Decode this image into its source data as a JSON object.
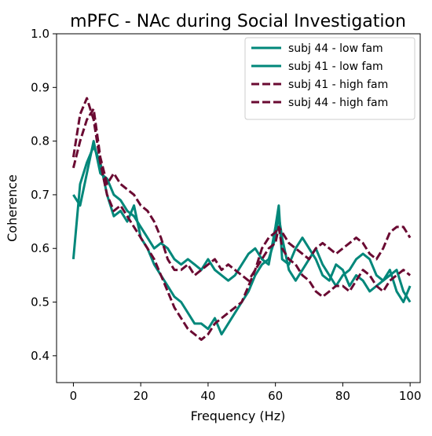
{
  "chart_data": {
    "type": "line",
    "title": "mPFC - NAc during Social Investigation",
    "xlabel": "Frequency (Hz)",
    "ylabel": "Coherence",
    "xlim": [
      -5,
      103
    ],
    "ylim": [
      0.35,
      1.0
    ],
    "xticks": [
      0,
      20,
      40,
      60,
      80,
      100
    ],
    "yticks": [
      0.4,
      0.5,
      0.6,
      0.7,
      0.8,
      0.9,
      1.0
    ],
    "xtick_labels": [
      "0",
      "20",
      "40",
      "60",
      "80",
      "100"
    ],
    "ytick_labels": [
      "0.4",
      "0.5",
      "0.6",
      "0.7",
      "0.8",
      "0.9",
      "1.0"
    ],
    "grid": false,
    "legend_position": "top-right",
    "x": [
      0,
      2,
      4,
      6,
      8,
      10,
      12,
      14,
      16,
      18,
      20,
      22,
      24,
      26,
      28,
      30,
      32,
      34,
      36,
      38,
      40,
      42,
      44,
      46,
      48,
      50,
      52,
      54,
      56,
      58,
      60,
      61,
      62,
      64,
      66,
      68,
      70,
      72,
      74,
      76,
      78,
      80,
      82,
      84,
      86,
      88,
      90,
      92,
      94,
      96,
      98,
      100
    ],
    "series": [
      {
        "name": "subj 44 - low fam",
        "color": "#00877a",
        "dash": "solid",
        "values": [
          0.58,
          0.72,
          0.76,
          0.79,
          0.76,
          0.7,
          0.66,
          0.67,
          0.65,
          0.68,
          0.62,
          0.6,
          0.57,
          0.55,
          0.53,
          0.51,
          0.5,
          0.48,
          0.46,
          0.46,
          0.45,
          0.47,
          0.44,
          0.46,
          0.48,
          0.5,
          0.52,
          0.55,
          0.57,
          0.58,
          0.62,
          0.66,
          0.62,
          0.56,
          0.54,
          0.56,
          0.58,
          0.6,
          0.57,
          0.55,
          0.53,
          0.55,
          0.56,
          0.58,
          0.59,
          0.58,
          0.55,
          0.54,
          0.56,
          0.52,
          0.5,
          0.53
        ]
      },
      {
        "name": "subj 41 - low fam",
        "color": "#00877a",
        "dash": "solid",
        "values": [
          0.7,
          0.68,
          0.74,
          0.8,
          0.74,
          0.73,
          0.7,
          0.69,
          0.67,
          0.66,
          0.64,
          0.62,
          0.6,
          0.61,
          0.6,
          0.58,
          0.57,
          0.58,
          0.57,
          0.56,
          0.58,
          0.56,
          0.55,
          0.54,
          0.55,
          0.57,
          0.59,
          0.6,
          0.58,
          0.57,
          0.64,
          0.68,
          0.58,
          0.57,
          0.6,
          0.62,
          0.6,
          0.58,
          0.55,
          0.54,
          0.57,
          0.56,
          0.53,
          0.55,
          0.54,
          0.52,
          0.53,
          0.54,
          0.55,
          0.56,
          0.52,
          0.5
        ]
      },
      {
        "name": "subj 41 - high fam",
        "color": "#6a0a32",
        "dash": "dashed",
        "values": [
          0.77,
          0.85,
          0.88,
          0.84,
          0.76,
          0.7,
          0.67,
          0.68,
          0.66,
          0.64,
          0.62,
          0.6,
          0.58,
          0.55,
          0.52,
          0.49,
          0.47,
          0.45,
          0.44,
          0.43,
          0.44,
          0.46,
          0.47,
          0.48,
          0.49,
          0.5,
          0.53,
          0.56,
          0.6,
          0.62,
          0.63,
          0.64,
          0.6,
          0.58,
          0.57,
          0.55,
          0.54,
          0.52,
          0.51,
          0.52,
          0.53,
          0.53,
          0.52,
          0.54,
          0.56,
          0.55,
          0.53,
          0.52,
          0.54,
          0.55,
          0.56,
          0.55
        ]
      },
      {
        "name": "subj 44 - high fam",
        "color": "#6a0a32",
        "dash": "dashed",
        "values": [
          0.75,
          0.8,
          0.84,
          0.86,
          0.77,
          0.72,
          0.74,
          0.72,
          0.71,
          0.7,
          0.68,
          0.67,
          0.65,
          0.62,
          0.58,
          0.56,
          0.56,
          0.57,
          0.55,
          0.56,
          0.57,
          0.58,
          0.56,
          0.57,
          0.56,
          0.55,
          0.54,
          0.56,
          0.58,
          0.6,
          0.61,
          0.64,
          0.63,
          0.61,
          0.6,
          0.59,
          0.58,
          0.6,
          0.61,
          0.6,
          0.59,
          0.6,
          0.61,
          0.62,
          0.61,
          0.59,
          0.58,
          0.6,
          0.63,
          0.64,
          0.64,
          0.62
        ]
      }
    ]
  }
}
